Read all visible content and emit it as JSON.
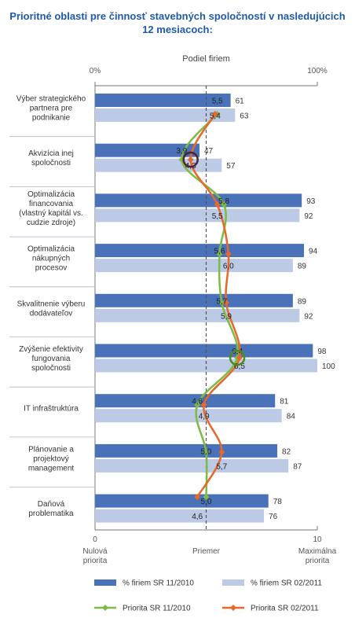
{
  "title_line1": "Prioritné oblasti pre činnosť stavebných spoločností v nasledujúcich",
  "title_line2": "12 mesiacoch:",
  "colors": {
    "dark_bar": "#4a72b8",
    "light_bar": "#bccae6",
    "green": "#7dbb44",
    "orange": "#e8672a",
    "circle_dark": "#4d2430",
    "circle_green": "#4f8a1e",
    "separator": "#aab6c8",
    "title": "#1e5aa8"
  },
  "chart_data": {
    "type": "bar",
    "top_axis_title": "Podiel firiem",
    "top_axis_ticks": [
      "0%",
      "100%"
    ],
    "top_axis_range": [
      0,
      100
    ],
    "bottom_axis_range": [
      0,
      10
    ],
    "bottom_axis_ticks": [
      "0",
      "10"
    ],
    "bottom_axis_labels": {
      "left": [
        "Nulová",
        "priorita"
      ],
      "middle": [
        "Priemer"
      ],
      "right": [
        "Maximálna",
        "priorita"
      ]
    },
    "average": 5,
    "categories": [
      [
        "Výber strategického",
        "partnera pre",
        "podnikanie"
      ],
      [
        "Akvizícia inej",
        "spoločnosti"
      ],
      [
        "Optimalizácia",
        "financovania",
        "(vlastný kapitál vs.",
        "cudzie zdroje)"
      ],
      [
        "Optimalizácia",
        "nákupných",
        "procesov"
      ],
      [
        "Skvalitnenie výberu",
        "dodávateľov"
      ],
      [
        "Zvýšenie efektivity",
        "fungovania",
        "spoločnosti"
      ],
      [
        "IT infraštruktúra"
      ],
      [
        "Plánovanie a",
        "projektový",
        "management"
      ],
      [
        "Daňová",
        "problematika"
      ]
    ],
    "series": [
      {
        "name": "% firiem SR 11/2010",
        "kind": "bar",
        "color": "#4a72b8",
        "values": [
          61,
          47,
          93,
          94,
          89,
          98,
          81,
          82,
          78
        ]
      },
      {
        "name": "% firiem SR 02/2011",
        "kind": "bar",
        "color": "#bccae6",
        "values": [
          63,
          57,
          92,
          89,
          92,
          100,
          84,
          87,
          76
        ]
      },
      {
        "name": "Priorita SR 11/2010",
        "kind": "line",
        "color": "#7dbb44",
        "values": [
          5.5,
          3.9,
          5.8,
          5.6,
          5.7,
          6.4,
          4.6,
          5.0,
          5.0
        ],
        "labels": [
          "5,5",
          "3,9",
          "5,8",
          "5,6",
          "5,7",
          "6,4",
          "4,6",
          "5,0",
          "5,0"
        ]
      },
      {
        "name": "Priorita SR 02/2011",
        "kind": "line",
        "color": "#e8672a",
        "values": [
          5.4,
          4.3,
          5.5,
          6.0,
          5.9,
          6.5,
          4.9,
          5.7,
          4.6
        ],
        "labels": [
          "5,4",
          "4,3",
          "5,5",
          "6,0",
          "5,9",
          "6,5",
          "4,9",
          "5,7",
          "4,6"
        ]
      }
    ],
    "highlighted_points": [
      {
        "category": 1,
        "series": "Priorita SR 02/2011",
        "ring_color": "#4d2430"
      },
      {
        "category": 5,
        "series": "Priorita SR 11/2010",
        "ring_color": "#4f8a1e"
      }
    ],
    "legend": [
      {
        "label": "% firiem SR 11/2010",
        "kind": "bar",
        "color": "#4a72b8"
      },
      {
        "label": "% firiem SR 02/2011",
        "kind": "bar",
        "color": "#bccae6"
      },
      {
        "label": "Priorita SR 11/2010",
        "kind": "line",
        "color": "#7dbb44"
      },
      {
        "label": "Priorita SR 02/2011",
        "kind": "line",
        "color": "#e8672a"
      }
    ],
    "legend_position": "bottom"
  }
}
